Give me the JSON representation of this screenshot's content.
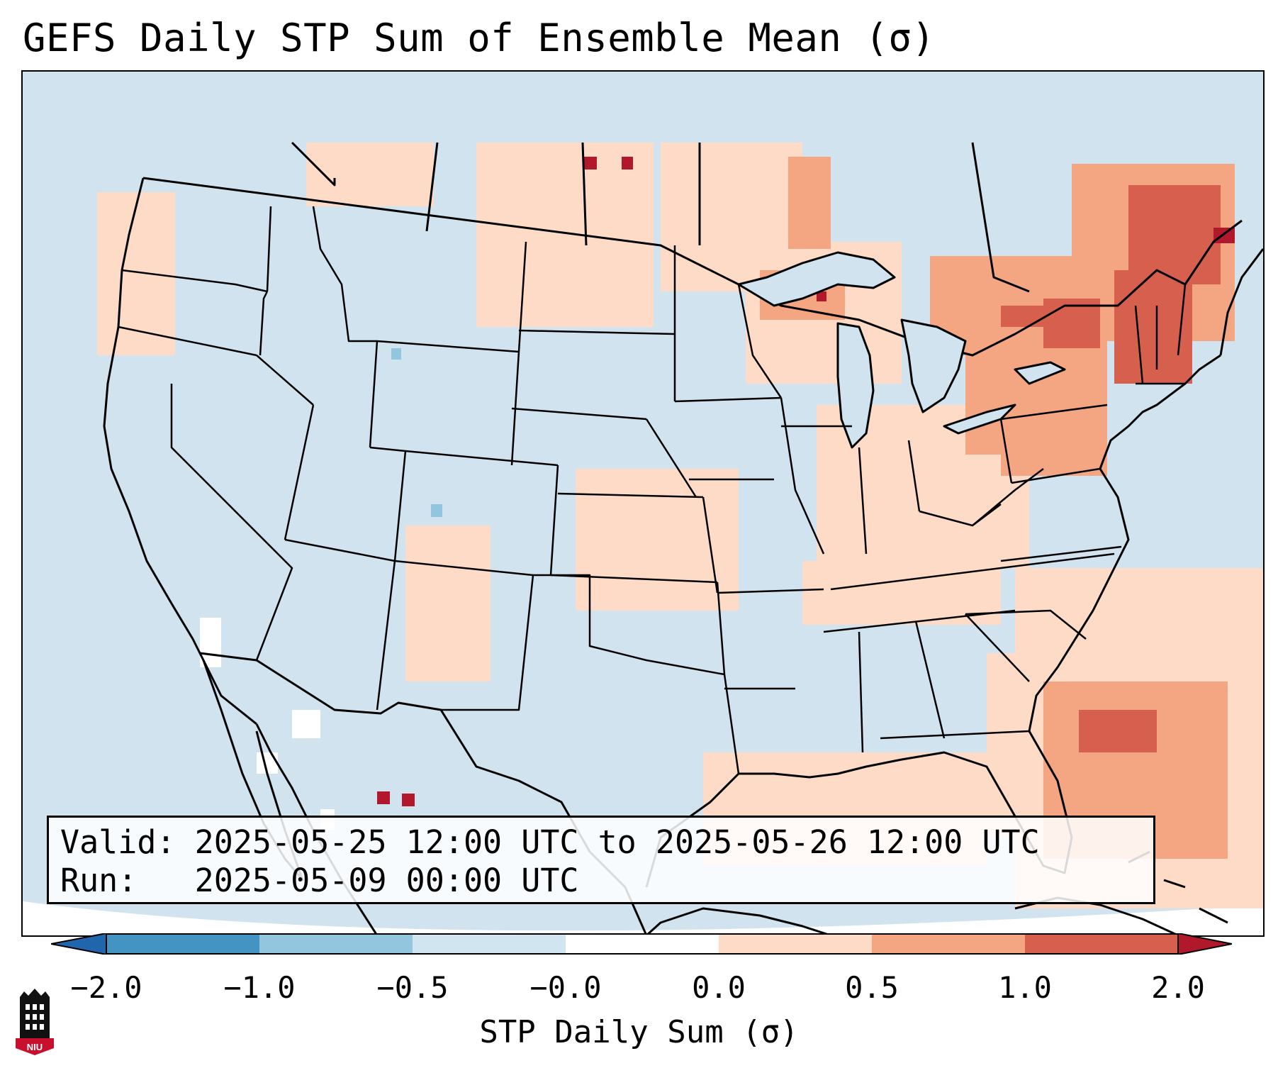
{
  "title": "GEFS Daily STP Sum of Ensemble Mean (σ)",
  "valid": {
    "valid_label": "Valid:",
    "valid_value": "2025-05-25 12:00 UTC to 2025-05-26 12:00 UTC",
    "run_label": "Run:",
    "run_value": "2025-05-09 00:00 UTC"
  },
  "colorbar": {
    "ticks": [
      "−2.0",
      "−1.0",
      "−0.5",
      "−0.0",
      "0.0",
      "0.5",
      "1.0",
      "2.0"
    ],
    "label": "STP Daily Sum (σ)",
    "colors": {
      "extend_low": "#2166ac",
      "bin_m2_m1": "#4393c3",
      "bin_m1_m05": "#92c5de",
      "bin_m05_m0": "#d1e5f0",
      "bin_m0_0": "#ffffff",
      "bin_0_05": "#fddbc7",
      "bin_05_1": "#f4a582",
      "bin_1_2": "#d6604d",
      "extend_high": "#b2182b"
    }
  },
  "logo": {
    "text": "NIU",
    "color": "#c8102e"
  },
  "map": {
    "background_color": "#d0e3ef",
    "features": [
      "coastlines",
      "country-borders",
      "us-state-borders",
      "great-lakes"
    ],
    "regions_high": [
      "Northeast US",
      "Quebec / New Brunswick",
      "Western Atlantic",
      "Upper Midwest",
      "Gulf of Mexico"
    ]
  }
}
